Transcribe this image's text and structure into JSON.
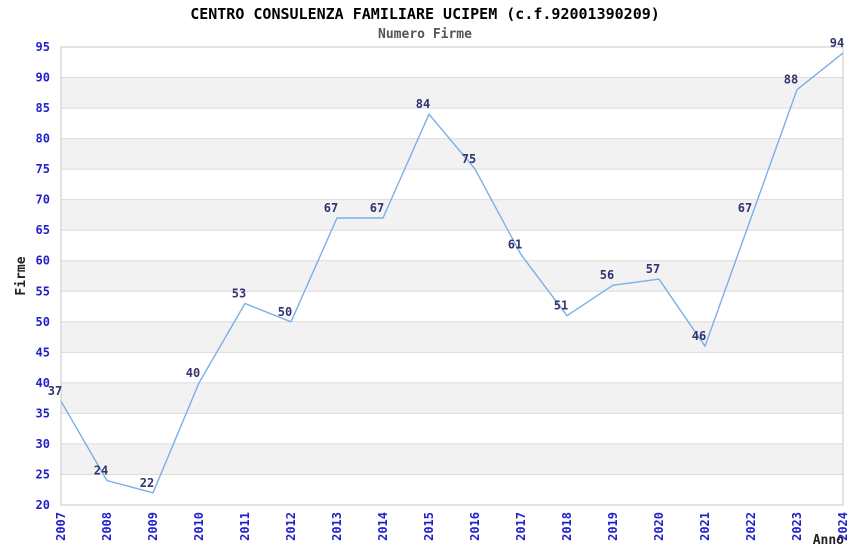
{
  "chart_data": {
    "type": "line",
    "title": "CENTRO CONSULENZA FAMILIARE UCIPEM (c.f.92001390209)",
    "subtitle": "Numero Firme",
    "xlabel": "Anno",
    "ylabel": "Firme",
    "categories": [
      "2007",
      "2008",
      "2009",
      "2010",
      "2011",
      "2012",
      "2013",
      "2014",
      "2015",
      "2016",
      "2017",
      "2018",
      "2019",
      "2020",
      "2021",
      "2022",
      "2023",
      "2024"
    ],
    "values": [
      37,
      24,
      22,
      40,
      53,
      50,
      67,
      67,
      84,
      75,
      61,
      51,
      56,
      57,
      46,
      67,
      88,
      94
    ],
    "ylim": [
      20,
      95
    ],
    "ytick_step": 5,
    "ytick_labels": [
      "20",
      "25",
      "30",
      "35",
      "40",
      "45",
      "50",
      "55",
      "60",
      "65",
      "70",
      "75",
      "80",
      "85",
      "90",
      "95"
    ],
    "grid": "horizontal",
    "bands": "alternating-5-unit",
    "legend": "none",
    "colors": {
      "line": "#7BAFE8",
      "tick_label": "#2222CC",
      "point_label": "#333370",
      "band": "#F2F2F2",
      "gridline": "#DCDCDC",
      "border": "#C8C8C8",
      "axis_title": "#222222",
      "title": "#000000",
      "subtitle": "#555555",
      "background": "#FFFFFF"
    }
  }
}
